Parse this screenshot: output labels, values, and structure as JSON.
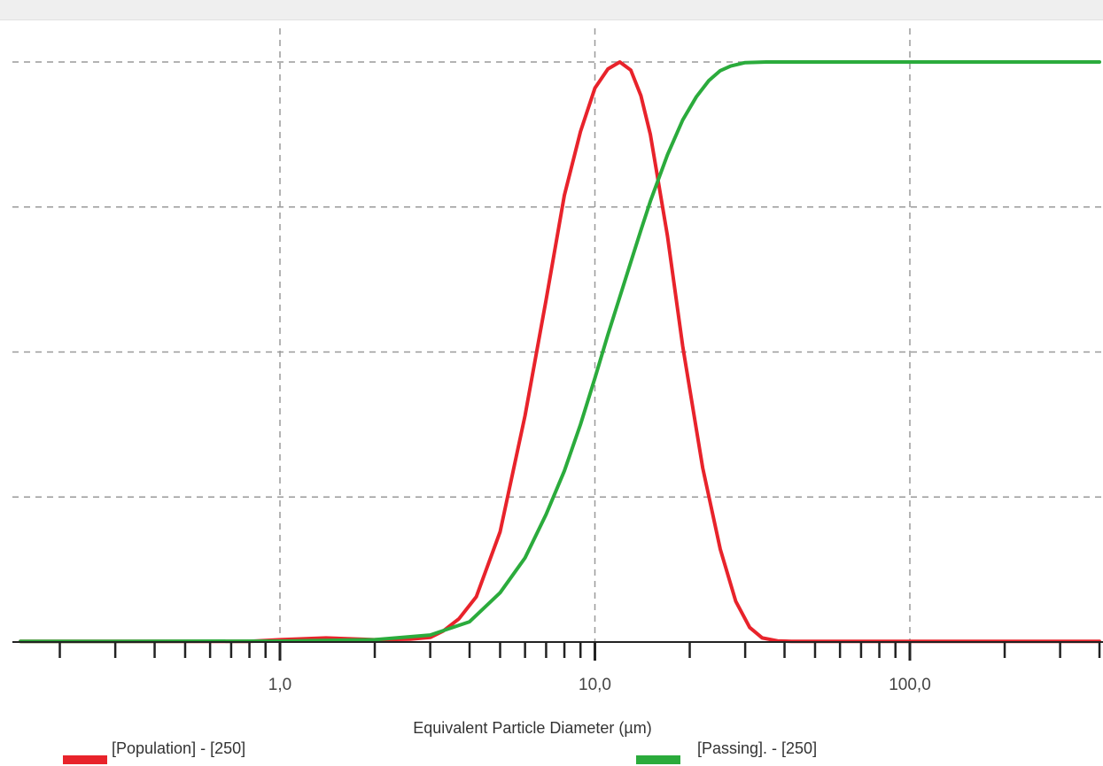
{
  "chart_data": {
    "type": "line",
    "x_scale": "log",
    "xlim": [
      0.15,
      400
    ],
    "ylim": [
      0,
      100
    ],
    "grid": true,
    "xlabel": "Equivalent Particle Diameter (µm)",
    "ylabel": "",
    "x_tick_labels": [
      "1,0",
      "10,0",
      "100,0"
    ],
    "x_tick_values": [
      1,
      10,
      100
    ],
    "legend_position": "bottom",
    "series": [
      {
        "name": "[Population] - [250]",
        "color": "#e8232b",
        "x": [
          0.15,
          0.8,
          1.0,
          1.4,
          2.0,
          2.6,
          3.0,
          3.3,
          3.7,
          4.2,
          5.0,
          6.0,
          7.0,
          8.0,
          9.0,
          10.0,
          11.0,
          12.0,
          13.0,
          14.0,
          15.0,
          17.0,
          19.0,
          22.0,
          25.0,
          28.0,
          31.0,
          34.0,
          38.0,
          42.0,
          60.0,
          400.0
        ],
        "y": [
          0.1,
          0.1,
          0.4,
          0.7,
          0.4,
          0.5,
          0.8,
          1.9,
          4.0,
          7.8,
          19.0,
          39.0,
          59.0,
          77.0,
          88.0,
          95.5,
          98.8,
          100.0,
          98.6,
          94.2,
          87.5,
          70.0,
          51.0,
          30.0,
          16.0,
          7.0,
          2.5,
          0.7,
          0.2,
          0.1,
          0.1,
          0.1
        ]
      },
      {
        "name": "[Passing]. - [250]",
        "color": "#2bab3c",
        "x": [
          0.15,
          1.0,
          2.0,
          3.0,
          4.0,
          5.0,
          6.0,
          7.0,
          8.0,
          9.0,
          10.0,
          11.0,
          12.0,
          13.0,
          14.0,
          15.0,
          17.0,
          19.0,
          21.0,
          23.0,
          25.0,
          27.0,
          30.0,
          35.0,
          400.0
        ],
        "y": [
          0.1,
          0.15,
          0.4,
          1.2,
          3.5,
          8.5,
          14.5,
          22.0,
          29.5,
          37.5,
          45.5,
          53.0,
          59.5,
          65.5,
          71.0,
          76.0,
          84.0,
          90.0,
          94.0,
          96.8,
          98.5,
          99.3,
          99.9,
          100.0,
          100.0
        ]
      }
    ]
  }
}
